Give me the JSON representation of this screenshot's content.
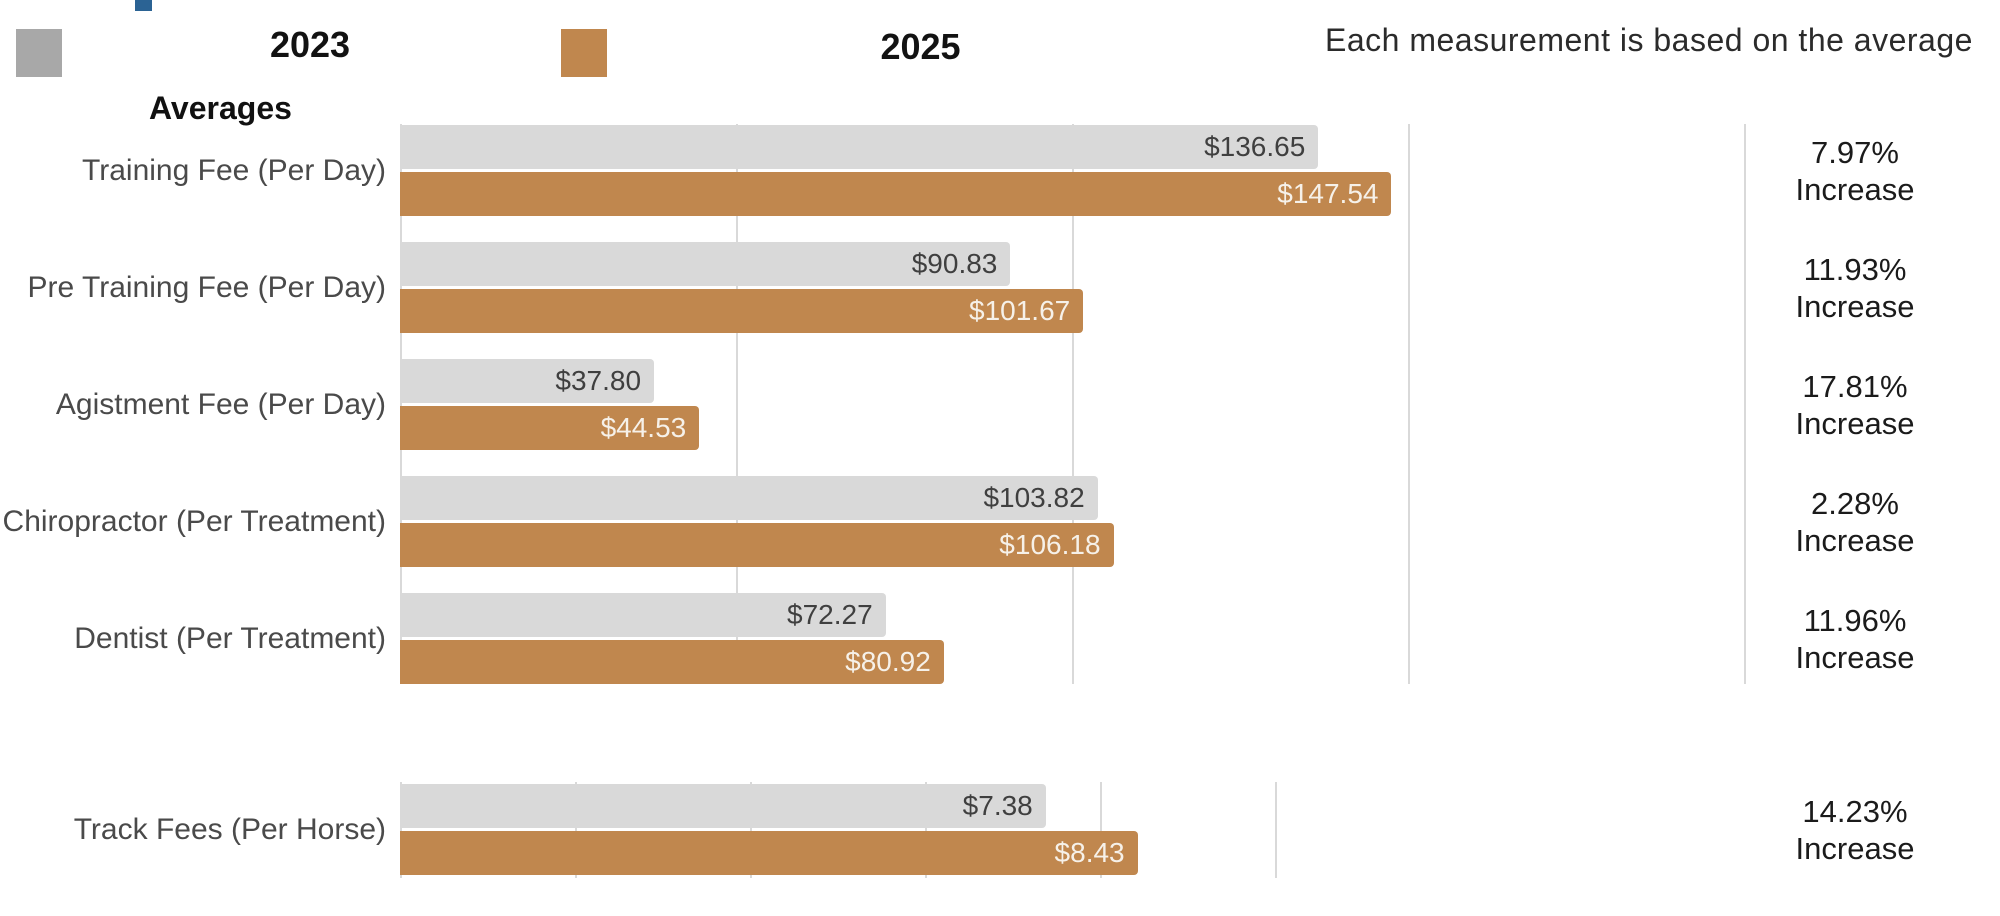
{
  "header": {
    "heading": "Averages",
    "note": "Each measurement is based on the average",
    "legend": [
      {
        "label": "2023",
        "swatch_color": "#a8a8a8"
      },
      {
        "label": "2025",
        "swatch_color": "#c0874e"
      }
    ],
    "accent_chip_color": "#2b6394"
  },
  "colors": {
    "bar_2023": "#d9d9d9",
    "bar_2025": "#c0874e",
    "gridline": "#d9d9d9",
    "value_text_on_gray": "#3f3f3f",
    "value_text_on_brown": "#f6f1e9"
  },
  "increase_word": "Increase",
  "chart_data": [
    {
      "type": "bar",
      "orientation": "horizontal",
      "title": "Averages",
      "categories": [
        "Training Fee (Per Day)",
        "Pre Training Fee (Per Day)",
        "Agistment Fee (Per Day)",
        "Chiropractor (Per Treatment)",
        "Dentist (Per Treatment)"
      ],
      "series": [
        {
          "name": "2023",
          "values": [
            136.65,
            90.83,
            37.8,
            103.82,
            72.27
          ],
          "value_labels": [
            "$136.65",
            "$90.83",
            "$37.80",
            "$103.82",
            "$72.27"
          ]
        },
        {
          "name": "2025",
          "values": [
            147.54,
            101.67,
            44.53,
            106.18,
            80.92
          ],
          "value_labels": [
            "$147.54",
            "$101.67",
            "$44.53",
            "$106.18",
            "$80.92"
          ]
        }
      ],
      "increase_labels": [
        "7.97%",
        "11.93%",
        "17.81%",
        "2.28%",
        "11.96%"
      ],
      "xlim": [
        0,
        200
      ],
      "grid_step": 50,
      "grid": true,
      "legend_position": "top"
    },
    {
      "type": "bar",
      "orientation": "horizontal",
      "categories": [
        "Track Fees (Per Horse)"
      ],
      "series": [
        {
          "name": "2023",
          "values": [
            7.38
          ],
          "value_labels": [
            "$7.38"
          ]
        },
        {
          "name": "2025",
          "values": [
            8.43
          ],
          "value_labels": [
            "$8.43"
          ]
        }
      ],
      "increase_labels": [
        "14.23%"
      ],
      "xlim": [
        0,
        10
      ],
      "grid_step": 2,
      "grid": true
    }
  ]
}
